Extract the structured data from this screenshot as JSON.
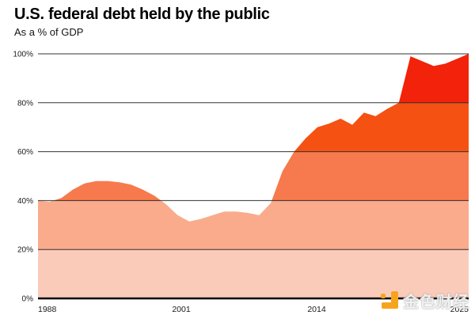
{
  "header": {
    "title": "U.S. federal debt held by the public",
    "subtitle": "As a % of GDP"
  },
  "chart_data": {
    "type": "area",
    "title": "U.S. federal debt held by the public",
    "subtitle": "As a % of GDP",
    "xlabel": "",
    "ylabel": "",
    "x_start": 1988,
    "x_end": 2025,
    "years": [
      1988,
      1989,
      1990,
      1991,
      1992,
      1993,
      1994,
      1995,
      1996,
      1997,
      1998,
      1999,
      2000,
      2001,
      2002,
      2003,
      2004,
      2005,
      2006,
      2007,
      2008,
      2009,
      2010,
      2011,
      2012,
      2013,
      2014,
      2015,
      2016,
      2017,
      2018,
      2019,
      2020,
      2021,
      2022,
      2023,
      2024,
      2025
    ],
    "series": [
      {
        "name": "Federal debt held by the public (% of GDP)",
        "values": [
          40,
          39.5,
          41,
          44.5,
          47,
          48,
          48,
          47.5,
          46.5,
          44.5,
          42,
          38.5,
          34,
          31.5,
          32.5,
          34,
          35.5,
          35.5,
          35,
          34,
          39,
          52,
          60,
          65.5,
          70,
          71.5,
          73.5,
          71,
          76,
          74.5,
          77.5,
          80,
          99,
          97,
          95,
          96,
          98,
          100
        ]
      }
    ],
    "ylim": [
      0,
      100
    ],
    "y_ticks": [
      "0%",
      "20%",
      "40%",
      "60%",
      "80%",
      "100%"
    ],
    "x_tick_labels": [
      "1988",
      "2001",
      "2014",
      "2025"
    ],
    "grid": true,
    "legend": "none",
    "band_colors": [
      "#fbcbba",
      "#f9ab8c",
      "#f67a4d",
      "#f55112",
      "#f2230a"
    ],
    "gridline_color": "#333333",
    "axis_line_color": "#000000",
    "tick_label_color": "#1a1a1a"
  },
  "watermark": {
    "text": "金色财经",
    "logo_color": "#f7a41d"
  }
}
